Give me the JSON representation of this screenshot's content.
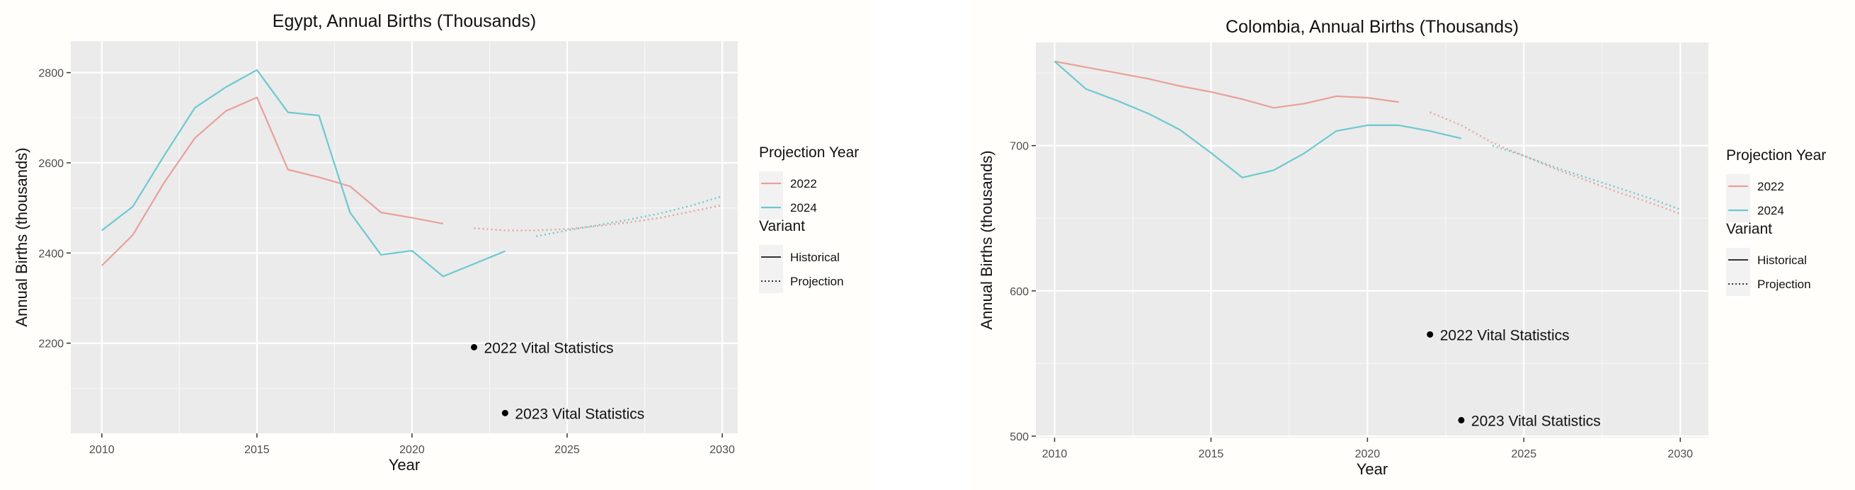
{
  "chart_data": [
    {
      "type": "line",
      "title": "Egypt, Annual Births (Thousands)",
      "xlabel": "Year",
      "ylabel": "Annual Births (thousands)",
      "xlim": [
        2009,
        2030.5
      ],
      "ylim": [
        2000,
        2870
      ],
      "x_ticks": [
        2010,
        2015,
        2020,
        2025,
        2030
      ],
      "y_ticks": [
        2200,
        2400,
        2600,
        2800
      ],
      "grid": true,
      "legend_position": "right",
      "legend": {
        "color_title": "Projection Year",
        "color_entries": [
          {
            "label": "2022",
            "color": "#e8a09a"
          },
          {
            "label": "2024",
            "color": "#6cc9cf"
          }
        ],
        "linetype_title": "Variant",
        "linetype_entries": [
          {
            "label": "Historical",
            "style": "solid"
          },
          {
            "label": "Projection",
            "style": "dotted"
          }
        ]
      },
      "series": [
        {
          "name": "2022",
          "variant": "Historical",
          "color": "#e8a09a",
          "x": [
            2010,
            2011,
            2012,
            2013,
            2014,
            2015,
            2016,
            2017,
            2018,
            2019,
            2020,
            2021
          ],
          "y": [
            2372,
            2440,
            2555,
            2655,
            2715,
            2745,
            2585,
            2568,
            2548,
            2490,
            2478,
            2465
          ]
        },
        {
          "name": "2024",
          "variant": "Historical",
          "color": "#6cc9cf",
          "x": [
            2010,
            2011,
            2012,
            2013,
            2014,
            2015,
            2016,
            2017,
            2018,
            2019,
            2020,
            2021,
            2022,
            2023
          ],
          "y": [
            2450,
            2503,
            2615,
            2722,
            2768,
            2806,
            2712,
            2705,
            2490,
            2396,
            2405,
            2348,
            2376,
            2404
          ]
        },
        {
          "name": "2022",
          "variant": "Projection",
          "color": "#e8a09a",
          "x": [
            2022,
            2023,
            2024,
            2025,
            2026,
            2027,
            2028,
            2029,
            2030
          ],
          "y": [
            2455,
            2450,
            2450,
            2453,
            2460,
            2468,
            2478,
            2492,
            2506
          ]
        },
        {
          "name": "2024",
          "variant": "Projection",
          "color": "#6cc9cf",
          "x": [
            2024,
            2025,
            2026,
            2027,
            2028,
            2029,
            2030
          ],
          "y": [
            2437,
            2450,
            2462,
            2474,
            2488,
            2505,
            2526
          ]
        }
      ],
      "annotations": [
        {
          "label": "2022 Vital Statistics",
          "x": 2022,
          "y": 2191
        },
        {
          "label": "2023 Vital Statistics",
          "x": 2023,
          "y": 2045
        }
      ]
    },
    {
      "type": "line",
      "title": "Colombia, Annual Births (Thousands)",
      "xlabel": "Year",
      "ylabel": "Annual Births (thousands)",
      "xlim": [
        2009.4,
        2030.9
      ],
      "ylim": [
        499,
        771
      ],
      "x_ticks": [
        2010,
        2015,
        2020,
        2025,
        2030
      ],
      "y_ticks": [
        500,
        600,
        700
      ],
      "grid": true,
      "legend_position": "right",
      "legend": {
        "color_title": "Projection Year",
        "color_entries": [
          {
            "label": "2022",
            "color": "#e8a09a"
          },
          {
            "label": "2024",
            "color": "#6cc9cf"
          }
        ],
        "linetype_title": "Variant",
        "linetype_entries": [
          {
            "label": "Historical",
            "style": "solid"
          },
          {
            "label": "Projection",
            "style": "dotted"
          }
        ]
      },
      "series": [
        {
          "name": "2022",
          "variant": "Historical",
          "color": "#e8a09a",
          "x": [
            2010,
            2011,
            2012,
            2013,
            2014,
            2015,
            2016,
            2017,
            2018,
            2019,
            2020,
            2021
          ],
          "y": [
            758,
            754,
            750,
            746,
            741,
            737,
            732,
            726,
            729,
            734,
            733,
            730
          ]
        },
        {
          "name": "2024",
          "variant": "Historical",
          "color": "#6cc9cf",
          "x": [
            2010,
            2011,
            2012,
            2013,
            2014,
            2015,
            2016,
            2017,
            2018,
            2019,
            2020,
            2021,
            2022,
            2023
          ],
          "y": [
            758,
            739,
            731,
            722,
            711,
            695,
            678,
            683,
            695,
            710,
            714,
            714,
            710,
            705
          ]
        },
        {
          "name": "2022",
          "variant": "Projection",
          "color": "#e8a09a",
          "x": [
            2022,
            2023,
            2024,
            2025,
            2026,
            2027,
            2028,
            2029,
            2030
          ],
          "y": [
            723,
            714,
            702,
            693,
            684,
            676,
            668,
            661,
            653
          ]
        },
        {
          "name": "2024",
          "variant": "Projection",
          "color": "#6cc9cf",
          "x": [
            2024,
            2025,
            2026,
            2027,
            2028,
            2029,
            2030
          ],
          "y": [
            700,
            693,
            685,
            678,
            671,
            664,
            656
          ]
        }
      ],
      "annotations": [
        {
          "label": "2022 Vital Statistics",
          "x": 2022,
          "y": 570
        },
        {
          "label": "2023 Vital Statistics",
          "x": 2023,
          "y": 511
        }
      ]
    }
  ]
}
